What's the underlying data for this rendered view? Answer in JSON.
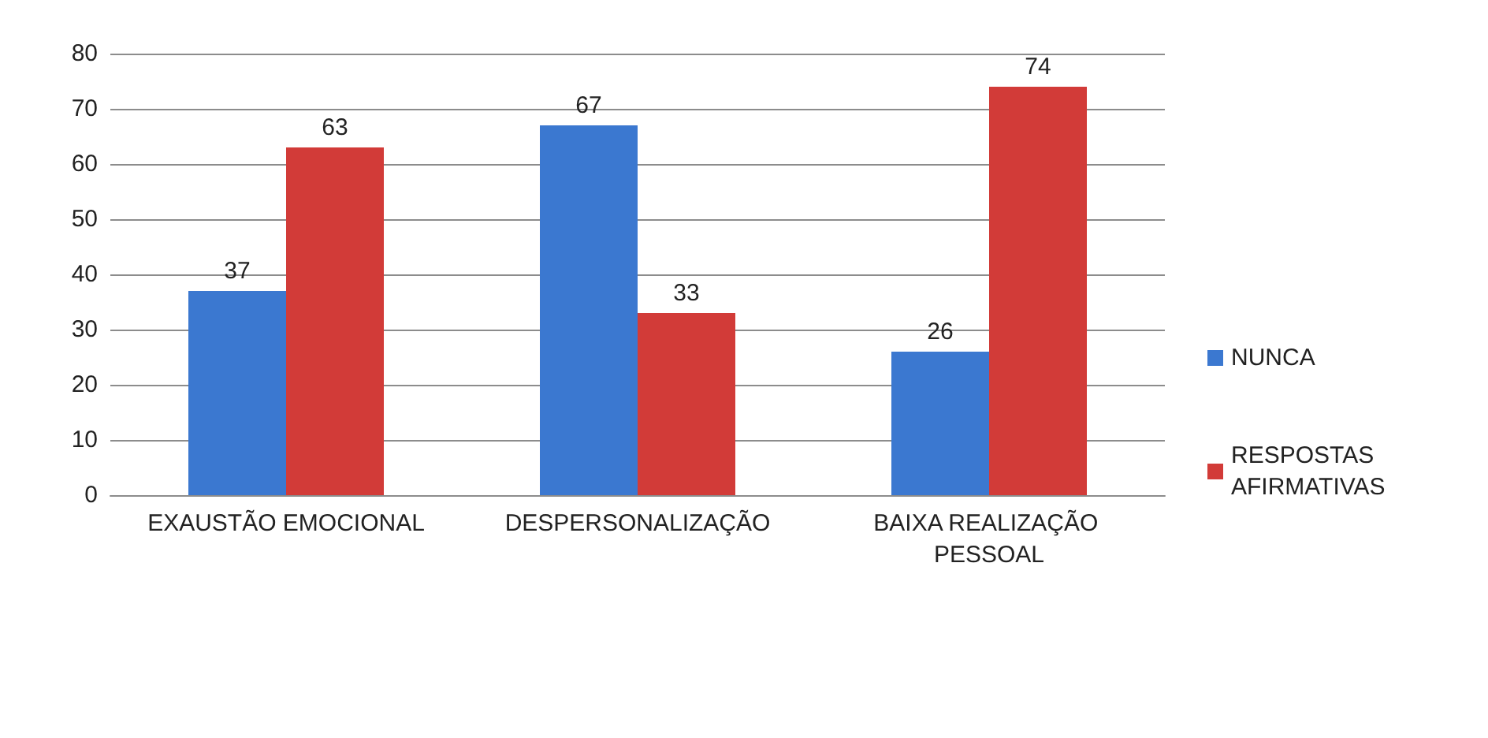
{
  "chart_data": {
    "type": "bar",
    "categories": [
      "EXAUSTÃO EMOCIONAL",
      "DESPERSONALIZAÇÃO",
      "BAIXA REALIZAÇÃO PESSOAL"
    ],
    "series": [
      {
        "name": "NUNCA",
        "color": "#3b78d0",
        "values": [
          37,
          67,
          26
        ]
      },
      {
        "name": "RESPOSTAS AFIRMATIVAS",
        "color": "#d23b38",
        "values": [
          63,
          33,
          74
        ]
      }
    ],
    "ylim": [
      0,
      80
    ],
    "yticks": [
      0,
      10,
      20,
      30,
      40,
      50,
      60,
      70,
      80
    ],
    "grid": "y",
    "legend": "right",
    "data_labels": true
  }
}
